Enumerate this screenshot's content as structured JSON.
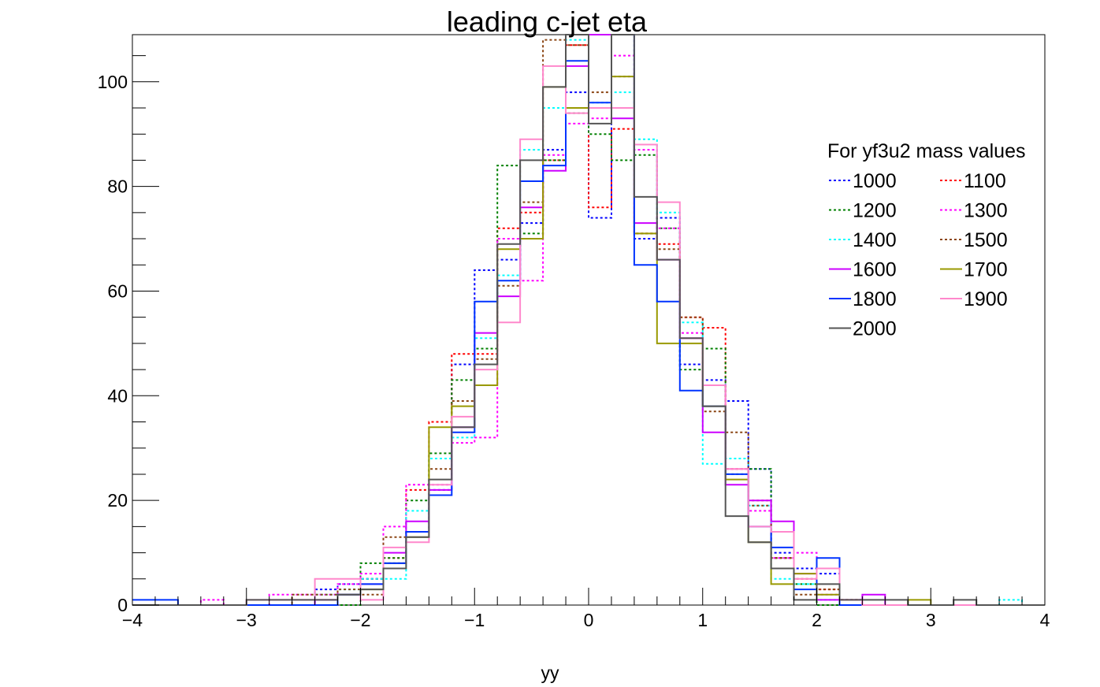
{
  "chart_data": {
    "type": "step-histogram",
    "title": "leading c-jet eta",
    "xlabel": "yy",
    "ylabel": "",
    "xlim": [
      -4,
      4
    ],
    "ylim": [
      0,
      109
    ],
    "x_ticks": [
      -4,
      -3,
      -2,
      -1,
      0,
      1,
      2,
      3,
      4
    ],
    "x_tick_labels": [
      "−4",
      "−3",
      "−2",
      "−1",
      "0",
      "1",
      "2",
      "3",
      "4"
    ],
    "y_ticks": [
      0,
      20,
      40,
      60,
      80,
      100
    ],
    "y_tick_labels": [
      "0",
      "20",
      "40",
      "60",
      "80",
      "100"
    ],
    "bin_edges": [
      -4.0,
      -3.8,
      -3.6,
      -3.4,
      -3.2,
      -3.0,
      -2.8,
      -2.6,
      -2.4,
      -2.2,
      -2.0,
      -1.8,
      -1.6,
      -1.4,
      -1.2,
      -1.0,
      -0.8,
      -0.6,
      -0.4,
      -0.2,
      0.0,
      0.2,
      0.4,
      0.6,
      0.8,
      1.0,
      1.2,
      1.4,
      1.6,
      1.8,
      2.0,
      2.2,
      2.4,
      2.6,
      2.8,
      3.0,
      3.2,
      3.4,
      3.6,
      3.8,
      4.0
    ],
    "legend": {
      "title": "For yf3u2 mass values",
      "placement": "right",
      "columns": 2
    },
    "series": [
      {
        "name": "1000",
        "color": "#0000ff",
        "dash": "dotted",
        "values": [
          0,
          0,
          0,
          0,
          0,
          0,
          0,
          0,
          3,
          4,
          5,
          8,
          14,
          22,
          46,
          64,
          66,
          73,
          87,
          98,
          74,
          110,
          70,
          74,
          46,
          43,
          39,
          26,
          10,
          7,
          6,
          1,
          0,
          0,
          0,
          0,
          0,
          0,
          0,
          0
        ]
      },
      {
        "name": "1100",
        "color": "#ff0000",
        "dash": "dotted",
        "values": [
          0,
          0,
          0,
          0,
          0,
          0,
          0,
          0,
          0,
          0,
          5,
          9,
          22,
          35,
          48,
          48,
          72,
          75,
          85,
          107,
          76,
          91,
          71,
          69,
          55,
          53,
          26,
          20,
          9,
          5,
          3,
          1,
          0,
          0,
          0,
          0,
          0,
          0,
          0,
          0
        ]
      },
      {
        "name": "1200",
        "color": "#008000",
        "dash": "dotted",
        "values": [
          0,
          0,
          0,
          0,
          0,
          0,
          0,
          0,
          0,
          0,
          8,
          9,
          20,
          29,
          43,
          49,
          84,
          71,
          85,
          94,
          90,
          85,
          86,
          72,
          45,
          49,
          25,
          26,
          9,
          4,
          0,
          0,
          0,
          0,
          0,
          0,
          0,
          0,
          0,
          0
        ]
      },
      {
        "name": "1300",
        "color": "#ff00ff",
        "dash": "dotted",
        "values": [
          0,
          0,
          0,
          1,
          0,
          0,
          2,
          2,
          2,
          4,
          6,
          15,
          23,
          23,
          31,
          32,
          70,
          62,
          86,
          92,
          93,
          105,
          87,
          72,
          52,
          42,
          26,
          18,
          9,
          10,
          2,
          1,
          0,
          0,
          0,
          0,
          0,
          0,
          0,
          0
        ]
      },
      {
        "name": "1400",
        "color": "#00ffff",
        "dash": "dotted",
        "values": [
          0,
          0,
          0,
          0,
          0,
          0,
          0,
          0,
          2,
          3,
          5,
          5,
          18,
          28,
          32,
          51,
          63,
          87,
          95,
          108,
          96,
          98,
          89,
          75,
          54,
          27,
          28,
          19,
          5,
          4,
          1,
          0,
          0,
          0,
          0,
          0,
          0,
          0,
          1,
          0
        ]
      },
      {
        "name": "1500",
        "color": "#8b4513",
        "dash": "dotted",
        "values": [
          0,
          0,
          0,
          0,
          0,
          0,
          0,
          2,
          2,
          3,
          2,
          13,
          14,
          26,
          39,
          47,
          61,
          77,
          108,
          107,
          98,
          101,
          71,
          68,
          55,
          37,
          33,
          19,
          9,
          2,
          3,
          1,
          0,
          0,
          0,
          0,
          0,
          0,
          0,
          0
        ]
      },
      {
        "name": "1600",
        "color": "#cc00ff",
        "dash": "solid",
        "values": [
          0,
          0,
          0,
          0,
          0,
          0,
          0,
          0,
          1,
          2,
          4,
          10,
          16,
          22,
          34,
          52,
          59,
          76,
          83,
          103,
          109,
          93,
          73,
          66,
          51,
          33,
          23,
          20,
          16,
          6,
          1,
          0,
          2,
          0,
          0,
          0,
          0,
          0,
          0,
          0
        ]
      },
      {
        "name": "1700",
        "color": "#999900",
        "dash": "solid",
        "values": [
          0,
          0,
          0,
          0,
          0,
          0,
          0,
          0,
          0,
          2,
          3,
          8,
          13,
          34,
          38,
          42,
          68,
          70,
          99,
          95,
          95,
          101,
          71,
          50,
          50,
          38,
          24,
          12,
          4,
          6,
          2,
          0,
          0,
          0,
          1,
          0,
          0,
          0,
          0,
          0
        ]
      },
      {
        "name": "1800",
        "color": "#0033ff",
        "dash": "solid",
        "values": [
          1,
          1,
          0,
          0,
          0,
          0,
          0,
          0,
          0,
          2,
          4,
          8,
          14,
          21,
          33,
          58,
          62,
          81,
          84,
          104,
          96,
          109,
          65,
          58,
          41,
          38,
          25,
          15,
          11,
          3,
          9,
          0,
          0,
          0,
          0,
          0,
          0,
          0,
          0,
          0
        ]
      },
      {
        "name": "1900",
        "color": "#ff88cc",
        "dash": "solid",
        "values": [
          0,
          0,
          0,
          0,
          0,
          1,
          1,
          1,
          5,
          5,
          1,
          11,
          12,
          23,
          36,
          45,
          54,
          89,
          103,
          94,
          95,
          95,
          88,
          77,
          51,
          42,
          26,
          15,
          14,
          5,
          7,
          1,
          0,
          0,
          0,
          0,
          0,
          0,
          0,
          0
        ]
      },
      {
        "name": "2000",
        "color": "#555555",
        "dash": "solid",
        "values": [
          0,
          0,
          0,
          0,
          0,
          1,
          1,
          1,
          1,
          2,
          3,
          7,
          13,
          24,
          34,
          46,
          69,
          85,
          99,
          109,
          92,
          109,
          78,
          66,
          51,
          38,
          17,
          12,
          7,
          1,
          4,
          1,
          1,
          1,
          0,
          0,
          1,
          0,
          0,
          0
        ]
      }
    ]
  }
}
